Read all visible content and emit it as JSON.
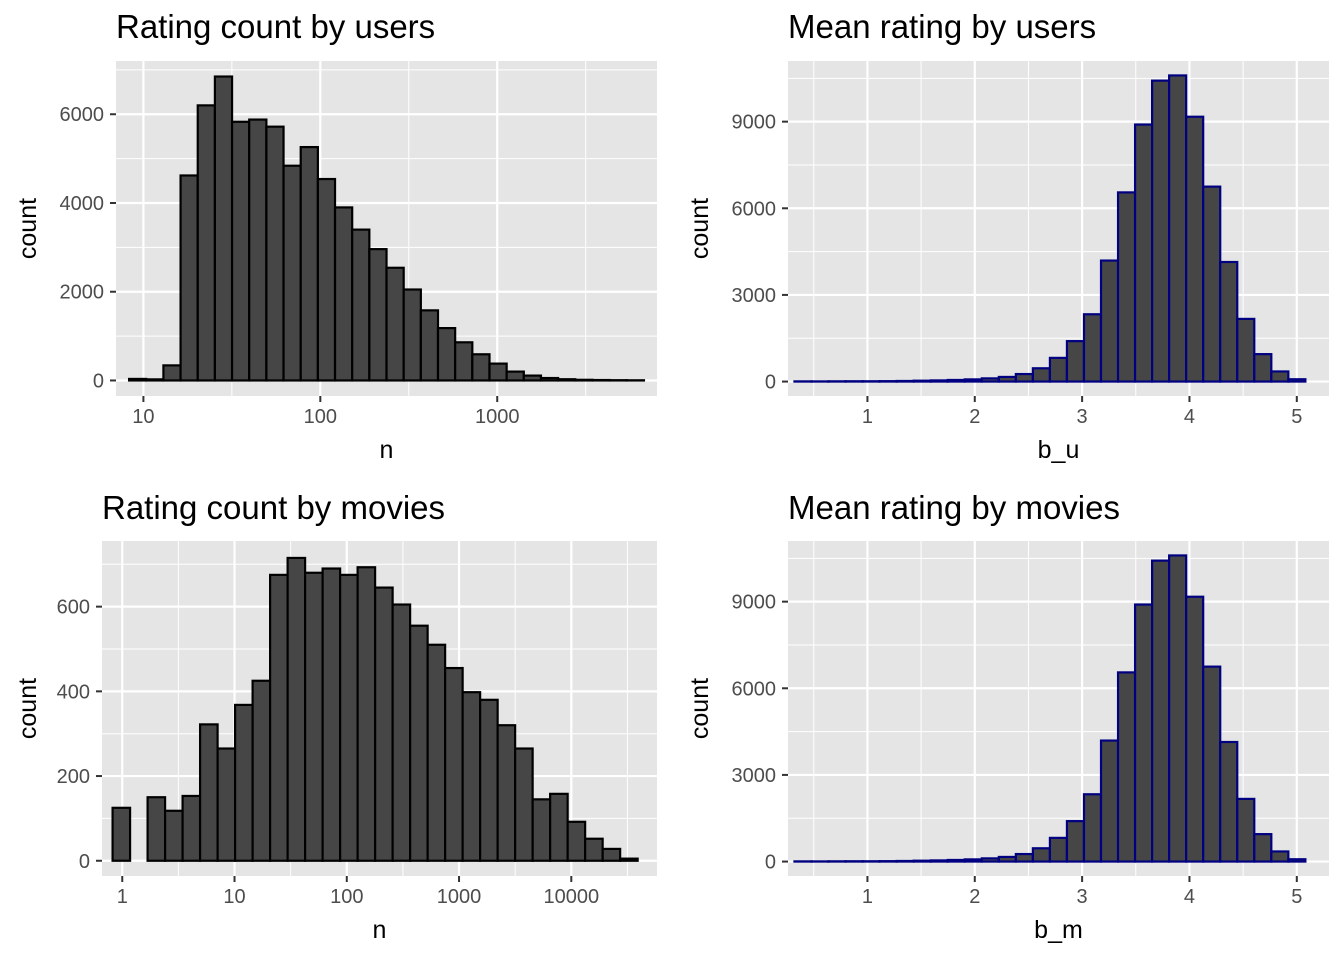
{
  "colors": {
    "panel_bg": "#e5e5e5",
    "grid_major": "#ffffff",
    "bar_fill": "#464646",
    "bar_edge_black": "#000000",
    "bar_edge_navy": "#000080",
    "tick_text": "#4d4d4d",
    "text": "#000000"
  },
  "chart_data": [
    {
      "type": "bar",
      "subtype": "histogram",
      "title": "Rating count by users",
      "xlabel": "n",
      "ylabel": "count",
      "xscale": "log10",
      "grid": true,
      "bar_edge": "black",
      "x_ticks": [
        10,
        100,
        1000
      ],
      "x_tick_labels": [
        "10",
        "100",
        "1000"
      ],
      "y_ticks": [
        0,
        2000,
        4000,
        6000
      ],
      "y_tick_labels": [
        "0",
        "2000",
        "4000",
        "6000"
      ],
      "ylim": [
        -350,
        7200
      ],
      "xlim": [
        7,
        8000
      ],
      "bins": {
        "start": 8.3,
        "end": 6750,
        "values": [
          35,
          25,
          340,
          4620,
          6200,
          6850,
          5830,
          5880,
          5720,
          4840,
          5260,
          4540,
          3900,
          3400,
          2960,
          2540,
          2050,
          1580,
          1180,
          860,
          590,
          380,
          200,
          110,
          55,
          28,
          15,
          10,
          6,
          4
        ]
      }
    },
    {
      "type": "bar",
      "subtype": "histogram",
      "title": "Mean rating by users",
      "xlabel": "b_u",
      "ylabel": "count",
      "xscale": "linear",
      "grid": true,
      "bar_edge": "navy",
      "x_ticks": [
        1,
        2,
        3,
        4,
        5
      ],
      "x_tick_labels": [
        "1",
        "2",
        "3",
        "4",
        "5"
      ],
      "y_ticks": [
        0,
        3000,
        6000,
        9000
      ],
      "y_tick_labels": [
        "0",
        "3000",
        "6000",
        "9000"
      ],
      "ylim": [
        -500,
        11100
      ],
      "xlim": [
        0.26,
        5.3
      ],
      "bins": {
        "start": 0.32,
        "end": 5.08,
        "values": [
          6,
          5,
          8,
          10,
          10,
          14,
          20,
          30,
          40,
          55,
          75,
          110,
          160,
          260,
          460,
          820,
          1400,
          2330,
          4190,
          6550,
          8900,
          10420,
          10600,
          9170,
          6750,
          4140,
          2170,
          950,
          350,
          80
        ]
      }
    },
    {
      "type": "bar",
      "subtype": "histogram",
      "title": "Rating count by movies",
      "xlabel": "n",
      "ylabel": "count",
      "xscale": "log10",
      "grid": true,
      "bar_edge": "black",
      "x_ticks": [
        1,
        10,
        100,
        1000,
        10000
      ],
      "x_tick_labels": [
        "1",
        "10",
        "100",
        "1000",
        "10000"
      ],
      "y_ticks": [
        0,
        200,
        400,
        600
      ],
      "y_tick_labels": [
        "0",
        "200",
        "400",
        "600"
      ],
      "ylim": [
        -36,
        755
      ],
      "xlim": [
        0.66,
        58000
      ],
      "bins": {
        "start": 0.82,
        "end": 39000,
        "values": [
          125,
          0,
          150,
          118,
          153,
          322,
          265,
          368,
          425,
          675,
          715,
          680,
          690,
          675,
          693,
          645,
          605,
          555,
          510,
          455,
          398,
          380,
          320,
          265,
          145,
          158,
          92,
          52,
          28,
          5
        ]
      }
    },
    {
      "type": "bar",
      "subtype": "histogram",
      "title": "Mean rating by movies",
      "xlabel": "b_m",
      "ylabel": "count",
      "xscale": "linear",
      "grid": true,
      "bar_edge": "navy",
      "x_ticks": [
        1,
        2,
        3,
        4,
        5
      ],
      "x_tick_labels": [
        "1",
        "2",
        "3",
        "4",
        "5"
      ],
      "y_ticks": [
        0,
        3000,
        6000,
        9000
      ],
      "y_tick_labels": [
        "0",
        "3000",
        "6000",
        "9000"
      ],
      "ylim": [
        -500,
        11100
      ],
      "xlim": [
        0.26,
        5.3
      ],
      "bins": {
        "start": 0.32,
        "end": 5.08,
        "values": [
          6,
          5,
          8,
          10,
          10,
          14,
          20,
          30,
          40,
          55,
          75,
          110,
          160,
          260,
          460,
          820,
          1400,
          2330,
          4190,
          6550,
          8900,
          10420,
          10600,
          9170,
          6750,
          4140,
          2170,
          950,
          350,
          80
        ]
      }
    }
  ]
}
